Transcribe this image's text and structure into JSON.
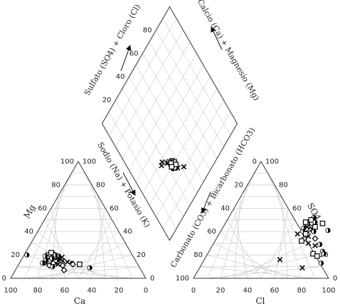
{
  "chart_data": {
    "type": "scatter",
    "subtype": "piper-diagram",
    "grid": true,
    "tick_values": [
      0,
      20,
      40,
      60,
      80,
      100
    ],
    "diamond_tick_values": [
      20,
      40,
      60,
      80
    ],
    "labels": {
      "left_triangle_side": "Mg",
      "left_triangle_base": "Ca",
      "right_triangle_side": "SO4",
      "right_triangle_base": "Cl",
      "diamond_upper_left": "Sulfato (SO4) + Cloro (Cl)",
      "diamond_upper_right": "Calcio (Ca) + Magnesio (Mg)",
      "diamond_lower_left": "Sodio (Na) + Potasio (K)",
      "diamond_lower_right": "Carbonato (CO3) + Bicarbonato (HCO3)"
    },
    "cation_points": [
      {
        "ca": 60,
        "mg": 19,
        "m": "half"
      },
      {
        "ca": 58,
        "mg": 18,
        "m": "square"
      },
      {
        "ca": 63,
        "mg": 17,
        "m": "x"
      },
      {
        "ca": 57,
        "mg": 16,
        "m": "half"
      },
      {
        "ca": 62,
        "mg": 20,
        "m": "square"
      },
      {
        "ca": 59,
        "mg": 16,
        "m": "x"
      },
      {
        "ca": 55,
        "mg": 19,
        "m": "half"
      },
      {
        "ca": 64,
        "mg": 18,
        "m": "diamond"
      },
      {
        "ca": 61,
        "mg": 15,
        "m": "square"
      },
      {
        "ca": 56,
        "mg": 17,
        "m": "x"
      },
      {
        "ca": 58,
        "mg": 21,
        "m": "half"
      },
      {
        "ca": 66,
        "mg": 16,
        "m": "half"
      },
      {
        "ca": 60,
        "mg": 14,
        "m": "square"
      },
      {
        "ca": 53,
        "mg": 18,
        "m": "x"
      },
      {
        "ca": 57,
        "mg": 20,
        "m": "half"
      },
      {
        "ca": 62,
        "mg": 13,
        "m": "diamond"
      },
      {
        "ca": 59,
        "mg": 22,
        "m": "square"
      },
      {
        "ca": 65,
        "mg": 19,
        "m": "half"
      },
      {
        "ca": 54,
        "mg": 15,
        "m": "x"
      },
      {
        "ca": 61,
        "mg": 17,
        "m": "half"
      },
      {
        "ca": 67,
        "mg": 13,
        "m": "x"
      },
      {
        "ca": 66,
        "mg": 11,
        "m": "diamond"
      },
      {
        "ca": 56,
        "mg": 11,
        "m": "diamond"
      },
      {
        "ca": 57,
        "mg": 7,
        "m": "diamond"
      },
      {
        "ca": 59,
        "mg": 12,
        "m": "x"
      },
      {
        "ca": 51,
        "mg": 14,
        "m": "x"
      },
      {
        "ca": 64,
        "mg": 10,
        "m": "half"
      },
      {
        "ca": 48,
        "mg": 13,
        "m": "circle"
      },
      {
        "ca": 48,
        "mg": 12,
        "m": "diamond"
      },
      {
        "ca": 78,
        "mg": 20,
        "m": "half"
      },
      {
        "ca": 70,
        "mg": 13,
        "m": "half"
      },
      {
        "ca": 43,
        "mg": 12,
        "m": "square"
      },
      {
        "ca": 37,
        "mg": 9,
        "m": "half"
      }
    ],
    "anion_points": [
      {
        "cl": 63,
        "so4": 52,
        "m": "half"
      },
      {
        "cl": 65,
        "so4": 45,
        "m": "square"
      },
      {
        "cl": 59,
        "so4": 48,
        "m": "square"
      },
      {
        "cl": 63,
        "so4": 39,
        "m": "x"
      },
      {
        "cl": 67,
        "so4": 42,
        "m": "x"
      },
      {
        "cl": 60,
        "so4": 43,
        "m": "half"
      },
      {
        "cl": 64,
        "so4": 47,
        "m": "diamond"
      },
      {
        "cl": 62,
        "so4": 50,
        "m": "square"
      },
      {
        "cl": 61,
        "so4": 40,
        "m": "half"
      },
      {
        "cl": 66,
        "so4": 48,
        "m": "half"
      },
      {
        "cl": 67,
        "so4": 36,
        "m": "x"
      },
      {
        "cl": 65,
        "so4": 34,
        "m": "diamond"
      },
      {
        "cl": 64,
        "so4": 38,
        "m": "square"
      },
      {
        "cl": 69,
        "so4": 40,
        "m": "half"
      },
      {
        "cl": 73,
        "so4": 34,
        "m": "diamond"
      },
      {
        "cl": 76,
        "so4": 28,
        "m": "x"
      },
      {
        "cl": 79,
        "so4": 29,
        "m": "half"
      },
      {
        "cl": 84,
        "so4": 23,
        "m": "half"
      },
      {
        "cl": 86,
        "so4": 21,
        "m": "half"
      },
      {
        "cl": 78,
        "so4": 21,
        "m": "square"
      },
      {
        "cl": 58,
        "so4": 38,
        "m": "x"
      },
      {
        "cl": 72,
        "so4": 47,
        "m": "square"
      },
      {
        "cl": 79,
        "so4": 41,
        "m": "half"
      },
      {
        "cl": 56,
        "so4": 16,
        "m": "x"
      },
      {
        "cl": 76,
        "so4": 9,
        "m": "x"
      },
      {
        "cl": 88,
        "so4": 13,
        "m": "half"
      },
      {
        "cl": 82,
        "so4": 19,
        "m": "square"
      },
      {
        "cl": 70,
        "so4": 30,
        "m": "x"
      },
      {
        "cl": 64,
        "so4": 32,
        "m": "square"
      },
      {
        "cl": 62,
        "so4": 44,
        "m": "x"
      },
      {
        "cl": 68,
        "so4": 44,
        "m": "square"
      }
    ],
    "diamond_points": [
      {
        "sc": 30,
        "cc": 35,
        "m": "square"
      },
      {
        "sc": 29,
        "cc": 34,
        "m": "half"
      },
      {
        "sc": 31,
        "cc": 36,
        "m": "square"
      },
      {
        "sc": 28,
        "cc": 33,
        "m": "circle"
      },
      {
        "sc": 32,
        "cc": 36,
        "m": "square"
      },
      {
        "sc": 30,
        "cc": 34,
        "m": "half"
      },
      {
        "sc": 33,
        "cc": 34,
        "m": "x"
      },
      {
        "sc": 29,
        "cc": 36,
        "m": "square"
      },
      {
        "sc": 31,
        "cc": 33,
        "m": "half"
      },
      {
        "sc": 27,
        "cc": 35,
        "m": "square"
      },
      {
        "sc": 30,
        "cc": 37,
        "m": "square"
      },
      {
        "sc": 34,
        "cc": 33,
        "m": "square"
      },
      {
        "sc": 35,
        "cc": 31,
        "m": "x"
      },
      {
        "sc": 25,
        "cc": 37,
        "m": "x"
      },
      {
        "sc": 21,
        "cc": 42,
        "m": "x"
      },
      {
        "sc": 39,
        "cc": 28,
        "m": "x"
      },
      {
        "sc": 38,
        "cc": 26,
        "m": "x"
      },
      {
        "sc": 32,
        "cc": 34,
        "m": "square"
      },
      {
        "sc": 28,
        "cc": 37,
        "m": "square"
      },
      {
        "sc": 30,
        "cc": 33,
        "m": "square"
      }
    ]
  }
}
